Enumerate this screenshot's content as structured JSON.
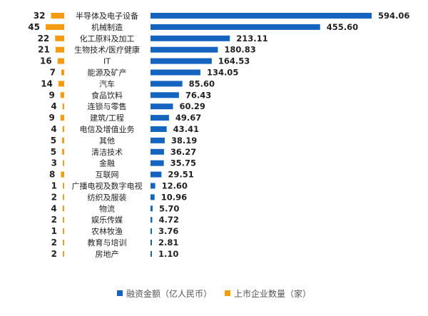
{
  "colors": {
    "amount": "#1565c0",
    "count": "#f39c12"
  },
  "chart_data": {
    "type": "bar",
    "orientation": "horizontal",
    "categories": [
      "半导体及电子设备",
      "机械制造",
      "化工原料及加工",
      "生物技术/医疗健康",
      "IT",
      "能源及矿产",
      "汽车",
      "食品饮料",
      "连锁与零售",
      "建筑/工程",
      "电信及增值业务",
      "其他",
      "清洁技术",
      "金融",
      "互联网",
      "广播电视及数字电视",
      "纺织及服装",
      "物流",
      "娱乐传媒",
      "农林牧渔",
      "教育与培训",
      "房地产"
    ],
    "series": [
      {
        "name": "融资金额（亿人民币）",
        "values": [
          594.06,
          455.6,
          213.11,
          180.83,
          164.53,
          134.05,
          85.6,
          76.43,
          60.29,
          49.67,
          43.41,
          38.19,
          36.27,
          35.75,
          29.51,
          12.6,
          10.96,
          5.7,
          4.72,
          3.76,
          2.81,
          1.1
        ],
        "labels": [
          "594.06",
          "455.60",
          "213.11",
          "180.83",
          "164.53",
          "134.05",
          "85.60",
          "76.43",
          "60.29",
          "49.67",
          "43.41",
          "38.19",
          "36.27",
          "35.75",
          "29.51",
          "12.60",
          "10.96",
          "5.70",
          "4.72",
          "3.76",
          "2.81",
          "1.10"
        ]
      },
      {
        "name": "上市企业数量（家）",
        "values": [
          32,
          45,
          22,
          21,
          16,
          7,
          14,
          9,
          4,
          9,
          4,
          5,
          5,
          3,
          8,
          1,
          2,
          4,
          2,
          1,
          2,
          2
        ],
        "labels": [
          "32",
          "45",
          "22",
          "21",
          "16",
          "7",
          "14",
          "9",
          "4",
          "9",
          "4",
          "5",
          "5",
          "3",
          "8",
          "1",
          "2",
          "4",
          "2",
          "1",
          "2",
          "2"
        ]
      }
    ],
    "legend_position": "bottom",
    "grid": false
  }
}
